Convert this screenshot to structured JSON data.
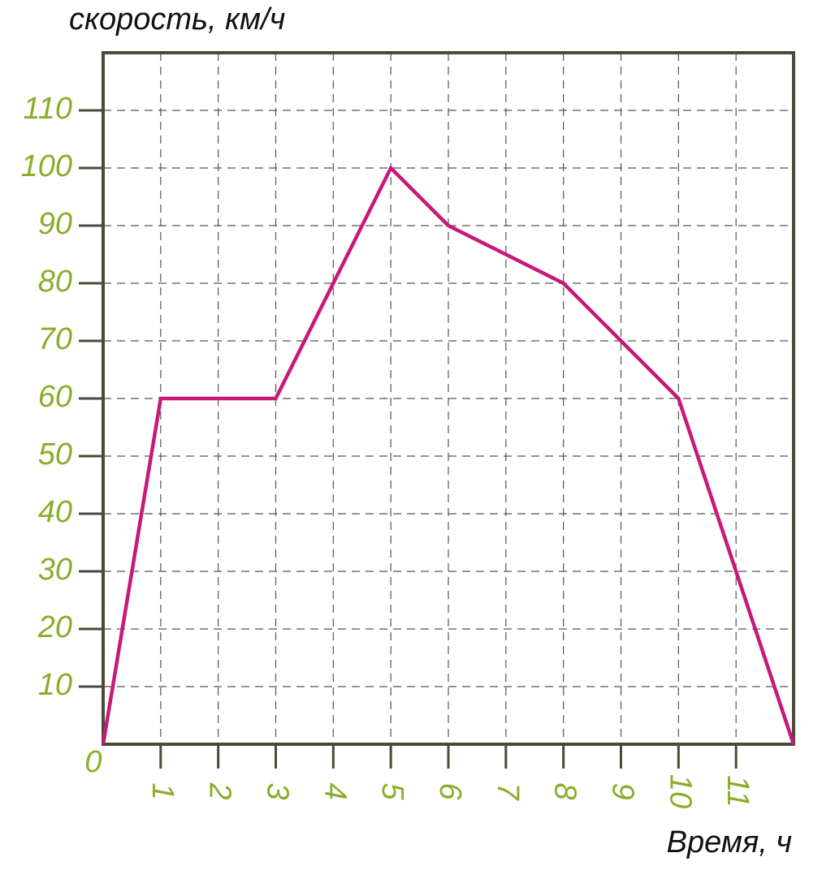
{
  "chart_data": {
    "type": "line",
    "y_label": "скорость, км/ч",
    "x_label": "Время, ч",
    "x": [
      0,
      1,
      2,
      3,
      4,
      5,
      6,
      7,
      8,
      9,
      10,
      11,
      12
    ],
    "series": [
      {
        "color": "#c8187a",
        "values": [
          0,
          60,
          60,
          60,
          80,
          100,
          90,
          85,
          80,
          70,
          60,
          30,
          0
        ]
      }
    ],
    "xlim": [
      0,
      12
    ],
    "ylim": [
      0,
      120
    ],
    "xticks": [
      0,
      1,
      2,
      3,
      4,
      5,
      6,
      7,
      8,
      9,
      10,
      11
    ],
    "yticks": [
      10,
      20,
      30,
      40,
      50,
      60,
      70,
      80,
      90,
      100,
      110
    ],
    "grid": true
  }
}
